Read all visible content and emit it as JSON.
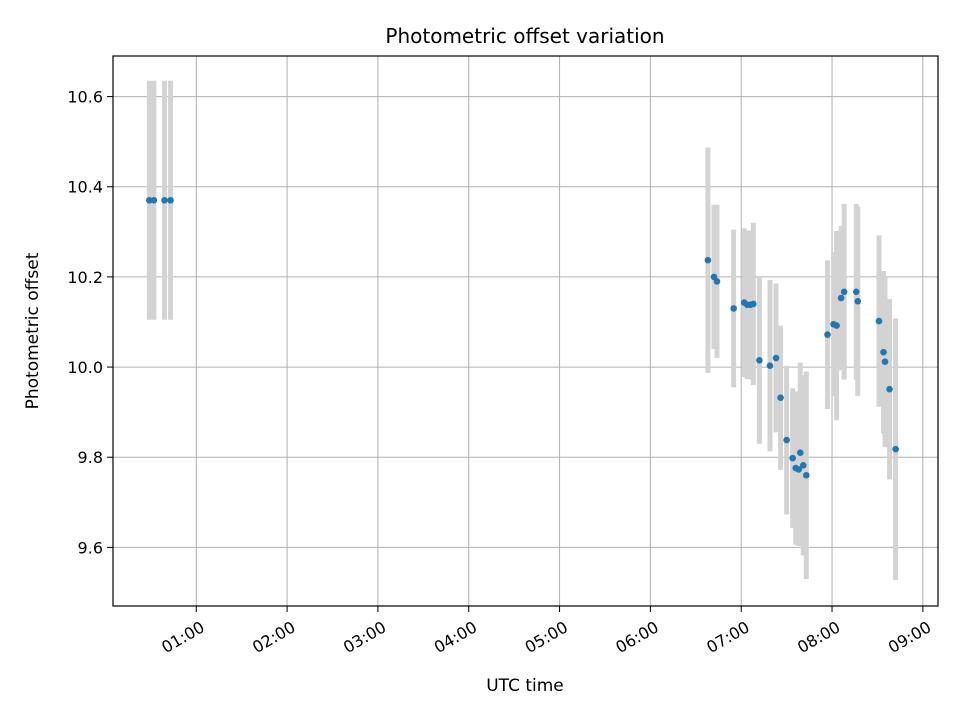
{
  "chart_data": {
    "type": "scatter",
    "title": "Photometric offset variation",
    "xlabel": "UTC time",
    "ylabel": "Photometric offset",
    "x_axis_kind": "time",
    "xlim": [
      "00:05",
      "09:10"
    ],
    "ylim": [
      9.47,
      10.69
    ],
    "x_ticks": [
      "01:00",
      "02:00",
      "03:00",
      "04:00",
      "05:00",
      "06:00",
      "07:00",
      "08:00",
      "09:00"
    ],
    "y_ticks": [
      "9.6",
      "9.8",
      "10.0",
      "10.2",
      "10.4",
      "10.6"
    ],
    "grid": true,
    "marker_color": "#1f77b4",
    "errorbar_color": "#d3d3d3",
    "points": [
      {
        "t": "00:29",
        "y": 10.37,
        "err": 0.265
      },
      {
        "t": "00:32",
        "y": 10.37,
        "err": 0.265
      },
      {
        "t": "00:39",
        "y": 10.37,
        "err": 0.265
      },
      {
        "t": "00:43",
        "y": 10.37,
        "err": 0.265
      },
      {
        "t": "06:38",
        "y": 10.237,
        "err": 0.25
      },
      {
        "t": "06:42",
        "y": 10.2,
        "err": 0.16
      },
      {
        "t": "06:44",
        "y": 10.19,
        "err": 0.17
      },
      {
        "t": "06:55",
        "y": 10.13,
        "err": 0.175
      },
      {
        "t": "07:02",
        "y": 10.143,
        "err": 0.165
      },
      {
        "t": "07:04",
        "y": 10.138,
        "err": 0.165
      },
      {
        "t": "07:06",
        "y": 10.138,
        "err": 0.165
      },
      {
        "t": "07:08",
        "y": 10.14,
        "err": 0.18
      },
      {
        "t": "07:12",
        "y": 10.015,
        "err": 0.185
      },
      {
        "t": "07:19",
        "y": 10.003,
        "err": 0.19
      },
      {
        "t": "07:23",
        "y": 10.02,
        "err": 0.165
      },
      {
        "t": "07:26",
        "y": 9.932,
        "err": 0.16
      },
      {
        "t": "07:30",
        "y": 9.838,
        "err": 0.165
      },
      {
        "t": "07:34",
        "y": 9.798,
        "err": 0.155
      },
      {
        "t": "07:36",
        "y": 9.776,
        "err": 0.17
      },
      {
        "t": "07:38",
        "y": 9.773,
        "err": 0.17
      },
      {
        "t": "07:39",
        "y": 9.81,
        "err": 0.2
      },
      {
        "t": "07:41",
        "y": 9.782,
        "err": 0.2
      },
      {
        "t": "07:43",
        "y": 9.76,
        "err": 0.23
      },
      {
        "t": "07:57",
        "y": 10.072,
        "err": 0.165
      },
      {
        "t": "08:01",
        "y": 10.095,
        "err": 0.16
      },
      {
        "t": "08:03",
        "y": 10.092,
        "err": 0.21
      },
      {
        "t": "08:06",
        "y": 10.153,
        "err": 0.16
      },
      {
        "t": "08:08",
        "y": 10.167,
        "err": 0.195
      },
      {
        "t": "08:16",
        "y": 10.167,
        "err": 0.195
      },
      {
        "t": "08:17",
        "y": 10.146,
        "err": 0.21
      },
      {
        "t": "08:31",
        "y": 10.102,
        "err": 0.19
      },
      {
        "t": "08:34",
        "y": 10.033,
        "err": 0.18
      },
      {
        "t": "08:35",
        "y": 10.012,
        "err": 0.19
      },
      {
        "t": "08:38",
        "y": 9.951,
        "err": 0.2
      },
      {
        "t": "08:42",
        "y": 9.818,
        "err": 0.29
      }
    ]
  }
}
